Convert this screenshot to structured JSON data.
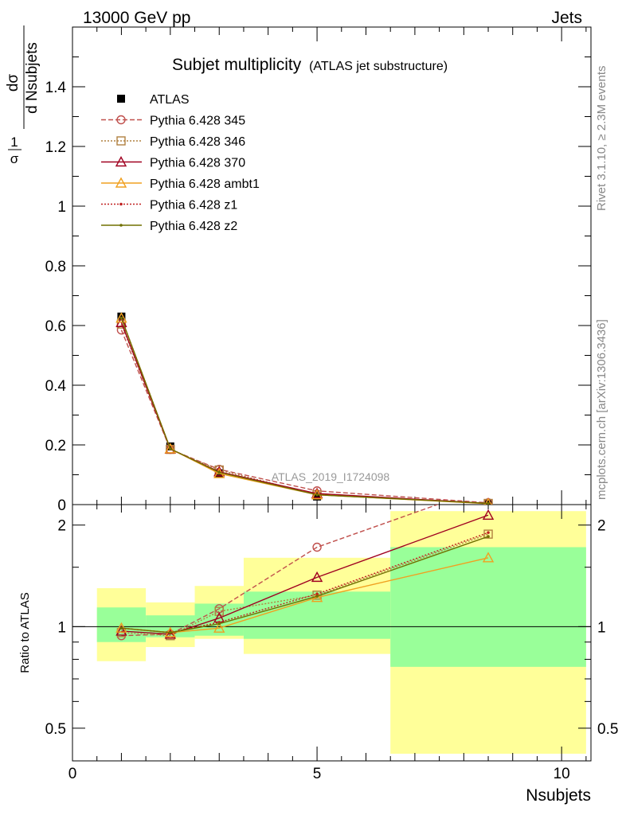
{
  "header": {
    "energy": "13000 GeV pp",
    "process": "Jets"
  },
  "title": {
    "main": "Subjet multiplicity",
    "sub": "(ATLAS jet substructure)"
  },
  "side_labels": {
    "rivet": "Rivet 3.1.10, ≥ 2.3M events",
    "site": "mcplots.cern.ch [arXiv:1306.3436]"
  },
  "watermark": "ATLAS_2019_I1724098",
  "ylabel_main": {
    "num": "1",
    "den": "σ",
    "dnum": "dσ",
    "dden": "d Nsubjets"
  },
  "ylabel_ratio": "Ratio to ATLAS",
  "xlabel": "Nsubjets",
  "colors": {
    "band_outer": "#ffff99",
    "band_inner": "#99ff99",
    "ATLAS": "#000000",
    "p345": "#c0504d",
    "p346": "#b08040",
    "p370": "#a00020",
    "ambt1": "#f0a020",
    "z1": "#c02020",
    "z2": "#707000"
  },
  "chart_data": [
    {
      "panel": "main",
      "type": "line",
      "xlim": [
        0,
        10.6
      ],
      "ylim": [
        0,
        1.6
      ],
      "yticks": [
        0,
        0.2,
        0.4,
        0.6,
        0.8,
        1,
        1.2,
        1.4
      ],
      "ytick_labels": [
        "0",
        "0.2",
        "0.4",
        "0.6",
        "0.8",
        "1",
        "1.2",
        "1.4"
      ],
      "x": [
        1,
        2,
        3,
        5,
        8.5
      ],
      "series": [
        {
          "name": "ATLAS",
          "key": "ATLAS",
          "marker": "square",
          "values": [
            0.63,
            0.195,
            0.105,
            0.027,
            0.002
          ]
        },
        {
          "name": "Pythia 6.428 345",
          "key": "p345",
          "marker": "circle",
          "dash": "6,3",
          "values": [
            0.585,
            0.185,
            0.118,
            0.046,
            0.006
          ]
        },
        {
          "name": "Pythia 6.428 346",
          "key": "p346",
          "marker": "square-open",
          "dash": "2,2",
          "values": [
            0.605,
            0.185,
            0.116,
            0.033,
            0.004
          ]
        },
        {
          "name": "Pythia 6.428 370",
          "key": "p370",
          "marker": "triangle",
          "dash": "",
          "values": [
            0.61,
            0.186,
            0.11,
            0.037,
            0.004
          ]
        },
        {
          "name": "Pythia 6.428 ambt1",
          "key": "ambt1",
          "marker": "triangle",
          "dash": "",
          "values": [
            0.625,
            0.187,
            0.104,
            0.033,
            0.003
          ]
        },
        {
          "name": "Pythia 6.428 z1",
          "key": "z1",
          "marker": "dot",
          "dash": "2,2",
          "values": [
            0.625,
            0.187,
            0.108,
            0.034,
            0.004
          ]
        },
        {
          "name": "Pythia 6.428 z2",
          "key": "z2",
          "marker": "dot",
          "dash": "",
          "values": [
            0.625,
            0.187,
            0.108,
            0.033,
            0.004
          ]
        }
      ]
    },
    {
      "panel": "ratio",
      "type": "line",
      "xlim": [
        0,
        10.6
      ],
      "ylim": [
        0.4,
        2.3
      ],
      "ylog": true,
      "yticks": [
        0.5,
        1,
        2
      ],
      "ytick_labels": [
        "0.5",
        "1",
        "2"
      ],
      "xticks": [
        0,
        5,
        10
      ],
      "xtick_labels": [
        "0",
        "5",
        "10"
      ],
      "bands": [
        {
          "x": [
            0.5,
            1.5
          ],
          "inner": [
            0.9,
            1.14
          ],
          "outer": [
            0.79,
            1.3
          ]
        },
        {
          "x": [
            1.5,
            2.5
          ],
          "inner": [
            0.93,
            1.08
          ],
          "outer": [
            0.87,
            1.18
          ]
        },
        {
          "x": [
            2.5,
            3.5
          ],
          "inner": [
            0.94,
            1.17
          ],
          "outer": [
            0.92,
            1.32
          ]
        },
        {
          "x": [
            3.5,
            6.5
          ],
          "inner": [
            0.92,
            1.27
          ],
          "outer": [
            0.83,
            1.6
          ]
        },
        {
          "x": [
            6.5,
            10.5
          ],
          "inner": [
            0.76,
            1.72
          ],
          "outer": [
            0.42,
            2.2
          ]
        }
      ],
      "x": [
        1,
        2,
        3,
        5,
        8.5
      ],
      "series": [
        {
          "name": "Pythia 6.428 345",
          "key": "p345",
          "marker": "circle",
          "dash": "6,3",
          "values": [
            0.94,
            0.95,
            1.13,
            1.72,
            2.6
          ]
        },
        {
          "name": "Pythia 6.428 346",
          "key": "p346",
          "marker": "square-open",
          "dash": "2,2",
          "values": [
            0.96,
            0.94,
            1.11,
            1.24,
            1.88
          ]
        },
        {
          "name": "Pythia 6.428 370",
          "key": "p370",
          "marker": "triangle",
          "dash": "",
          "values": [
            0.97,
            0.95,
            1.06,
            1.4,
            2.14
          ]
        },
        {
          "name": "Pythia 6.428 ambt1",
          "key": "ambt1",
          "marker": "triangle",
          "dash": "",
          "values": [
            0.99,
            0.96,
            0.99,
            1.22,
            1.6
          ]
        },
        {
          "name": "Pythia 6.428 z1",
          "key": "z1",
          "marker": "dot",
          "dash": "2,2",
          "values": [
            0.99,
            0.96,
            1.03,
            1.25,
            1.9
          ]
        },
        {
          "name": "Pythia 6.428 z2",
          "key": "z2",
          "marker": "dot",
          "dash": "",
          "values": [
            0.99,
            0.96,
            1.02,
            1.23,
            1.85
          ]
        }
      ]
    }
  ]
}
